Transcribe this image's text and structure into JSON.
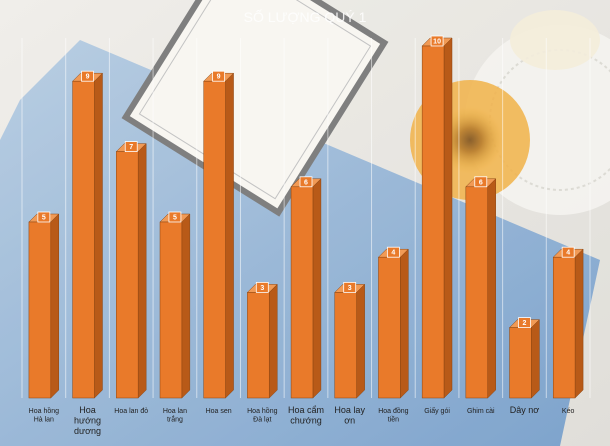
{
  "chart_data": {
    "type": "bar",
    "title": "SỐ LƯỢNG QUÝ 1",
    "categories": [
      [
        "Hoa hồng",
        "Hà lan"
      ],
      [
        "Hoa",
        "hướng",
        "dương"
      ],
      [
        "Hoa lan đỏ"
      ],
      [
        "Hoa lan",
        "trắng"
      ],
      [
        "Hoa sen"
      ],
      [
        "Hoa hồng",
        "Đà lạt"
      ],
      [
        "Hoa cẩm",
        "chướng"
      ],
      [
        "Hoa lay",
        "ơn"
      ],
      [
        "Hoa đồng",
        "tiền"
      ],
      [
        "Giấy gói"
      ],
      [
        "Ghim cài"
      ],
      [
        "Dây nơ"
      ],
      [
        "Kéo"
      ]
    ],
    "values": [
      5,
      9,
      7,
      5,
      9,
      3,
      6,
      3,
      4,
      10,
      6,
      2,
      4
    ],
    "ylim": [
      0,
      10
    ],
    "grid": true,
    "bar_color": "#e97a2a",
    "bar_side_color": "#b85a18",
    "bar_top_color": "#f19a55",
    "label_box_color": "#e97a2a"
  }
}
